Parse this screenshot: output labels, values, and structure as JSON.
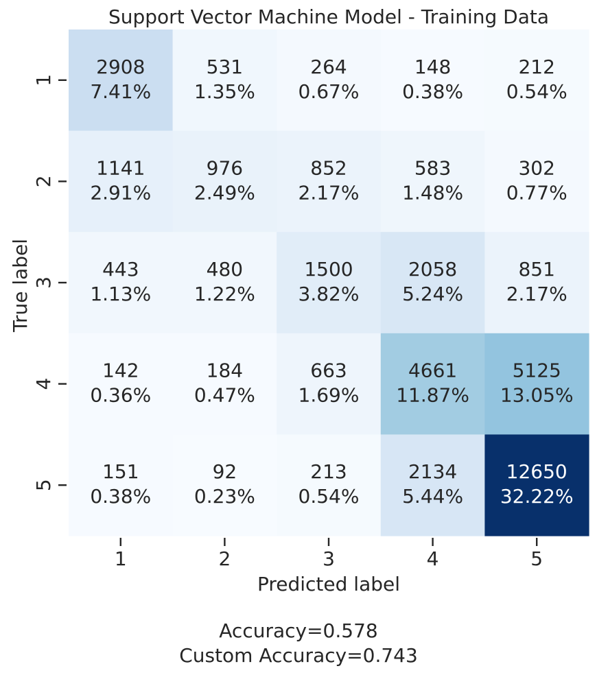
{
  "chart_data": {
    "type": "heatmap",
    "title": "Support Vector Machine Model - Training Data",
    "xlabel": "Predicted label",
    "ylabel": "True label",
    "x_categories": [
      "1",
      "2",
      "3",
      "4",
      "5"
    ],
    "y_categories": [
      "1",
      "2",
      "3",
      "4",
      "5"
    ],
    "values": [
      [
        2908,
        531,
        264,
        148,
        212
      ],
      [
        1141,
        976,
        852,
        583,
        302
      ],
      [
        443,
        480,
        1500,
        2058,
        851
      ],
      [
        142,
        184,
        663,
        4661,
        5125
      ],
      [
        151,
        92,
        213,
        2134,
        12650
      ]
    ],
    "percentages": [
      [
        "7.41%",
        "1.35%",
        "0.67%",
        "0.38%",
        "0.54%"
      ],
      [
        "2.91%",
        "2.49%",
        "2.17%",
        "1.48%",
        "0.77%"
      ],
      [
        "1.13%",
        "1.22%",
        "3.82%",
        "5.24%",
        "2.17%"
      ],
      [
        "0.36%",
        "0.47%",
        "1.69%",
        "11.87%",
        "13.05%"
      ],
      [
        "0.38%",
        "0.23%",
        "0.54%",
        "5.44%",
        "32.22%"
      ]
    ],
    "colormap": "Blues",
    "colorbar": false
  },
  "footer": {
    "accuracy": "Accuracy=0.578",
    "custom_accuracy": "Custom Accuracy=0.743"
  },
  "colors": {
    "text_dark": "#262626",
    "text_light": "#ffffff"
  }
}
